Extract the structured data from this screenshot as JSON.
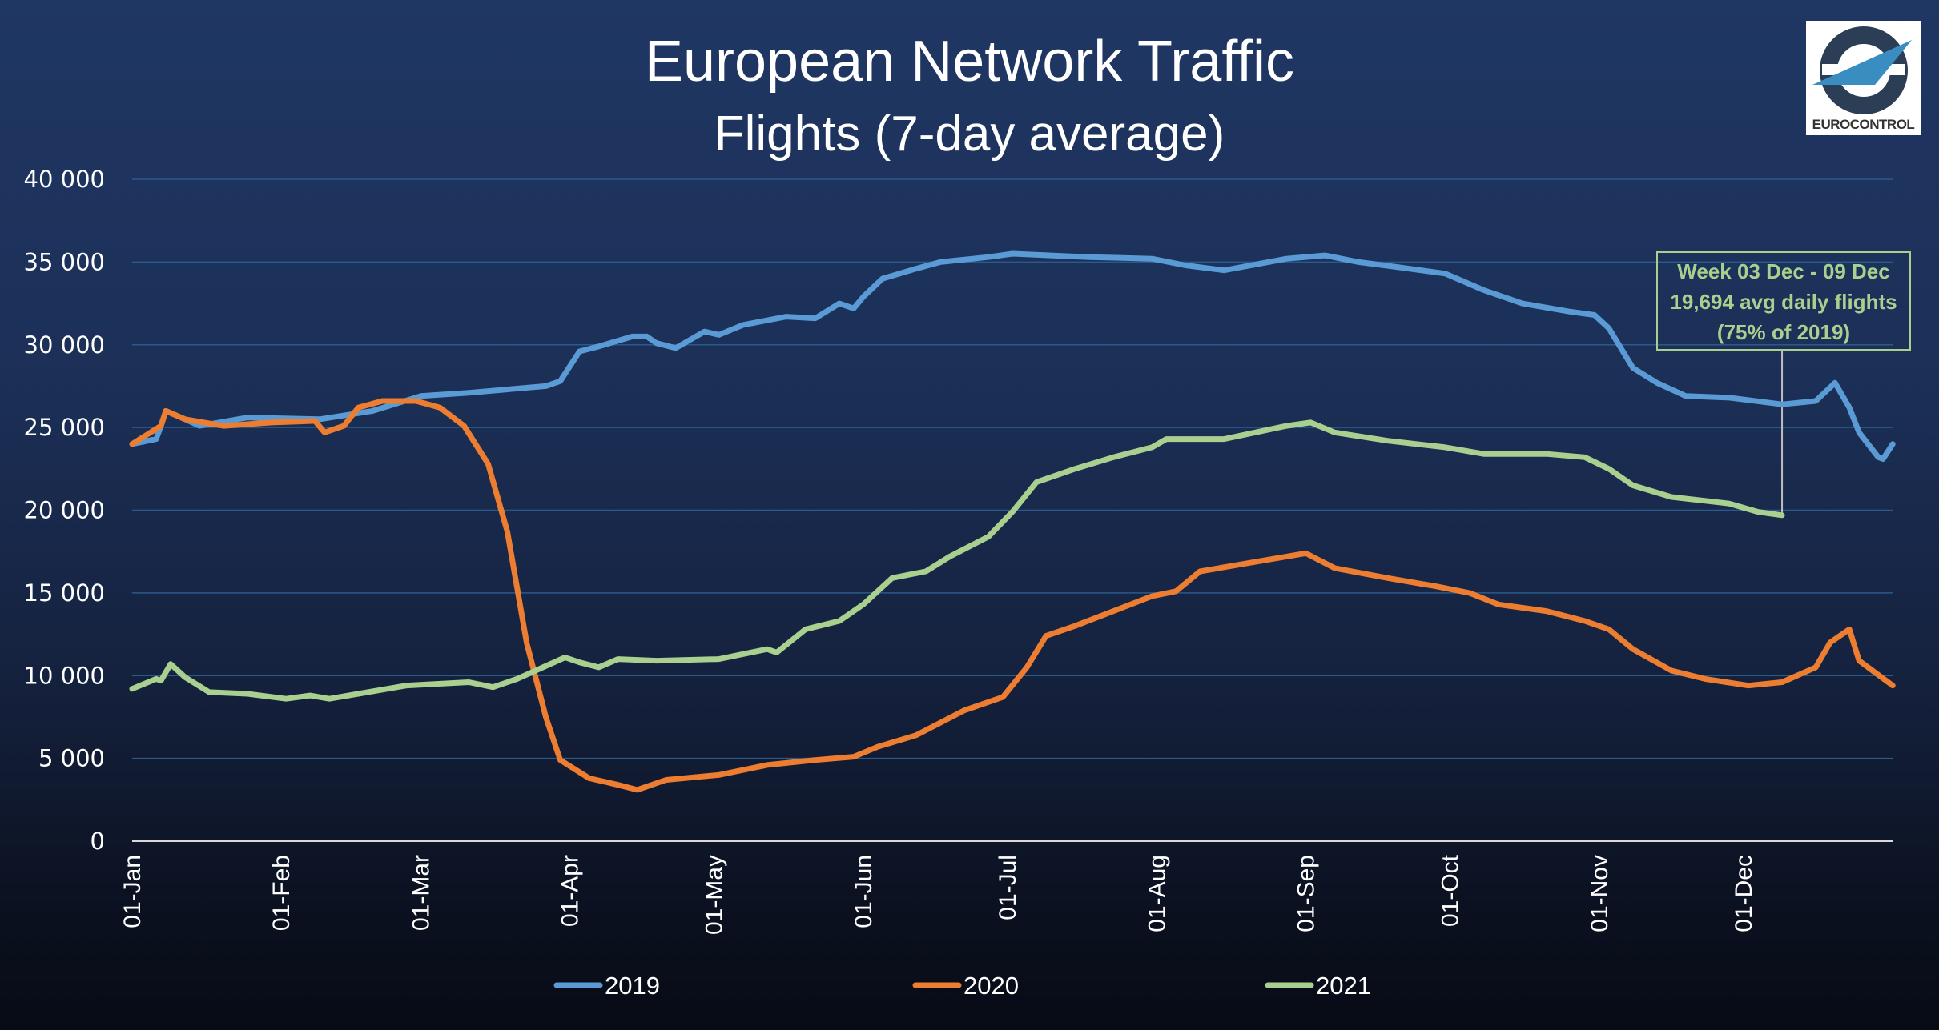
{
  "chart_data": {
    "type": "line",
    "title": "European Network Traffic",
    "subtitle": "Flights (7-day average)",
    "xlabel": "",
    "ylabel": "",
    "ylim": [
      0,
      40000
    ],
    "yticks": [
      "0",
      "5 000",
      "10 000",
      "15 000",
      "20 000",
      "25 000",
      "30 000",
      "35 000",
      "40 000"
    ],
    "ytick_values": [
      0,
      5000,
      10000,
      15000,
      20000,
      25000,
      30000,
      35000,
      40000
    ],
    "xtick_labels": [
      "01-Jan",
      "01-Feb",
      "01-Mar",
      "01-Apr",
      "01-May",
      "01-Jun",
      "01-Jul",
      "01-Aug",
      "01-Sep",
      "01-Oct",
      "01-Nov",
      "01-Dec"
    ],
    "xtick_days": [
      0,
      31,
      60,
      91,
      121,
      152,
      182,
      213,
      244,
      274,
      305,
      335
    ],
    "xlim_days": [
      0,
      366
    ],
    "grid": true,
    "legend_position": "bottom",
    "series": [
      {
        "name": "2019",
        "color": "#5b9bd5",
        "points": [
          [
            0,
            24000
          ],
          [
            5,
            24300
          ],
          [
            6,
            25100
          ],
          [
            7,
            26000
          ],
          [
            11,
            25500
          ],
          [
            14,
            25100
          ],
          [
            24,
            25600
          ],
          [
            39,
            25500
          ],
          [
            50,
            26000
          ],
          [
            60,
            26900
          ],
          [
            70,
            27100
          ],
          [
            86,
            27500
          ],
          [
            89,
            27800
          ],
          [
            93,
            29600
          ],
          [
            97,
            29900
          ],
          [
            104,
            30500
          ],
          [
            107,
            30500
          ],
          [
            109,
            30100
          ],
          [
            113,
            29800
          ],
          [
            119,
            30800
          ],
          [
            122,
            30600
          ],
          [
            127,
            31200
          ],
          [
            136,
            31700
          ],
          [
            142,
            31600
          ],
          [
            147,
            32500
          ],
          [
            150,
            32200
          ],
          [
            152,
            32900
          ],
          [
            156,
            34000
          ],
          [
            163,
            34600
          ],
          [
            168,
            35000
          ],
          [
            178,
            35300
          ],
          [
            183,
            35500
          ],
          [
            199,
            35300
          ],
          [
            212,
            35200
          ],
          [
            219,
            34800
          ],
          [
            227,
            34500
          ],
          [
            240,
            35200
          ],
          [
            248,
            35400
          ],
          [
            255,
            35000
          ],
          [
            263,
            34700
          ],
          [
            273,
            34300
          ],
          [
            281,
            33300
          ],
          [
            289,
            32500
          ],
          [
            299,
            32000
          ],
          [
            304,
            31800
          ],
          [
            307,
            31000
          ],
          [
            312,
            28600
          ],
          [
            317,
            27700
          ],
          [
            323,
            26900
          ],
          [
            332,
            26800
          ],
          [
            343,
            26400
          ],
          [
            350,
            26600
          ],
          [
            354,
            27700
          ],
          [
            357,
            26200
          ],
          [
            359,
            24700
          ],
          [
            363,
            23200
          ],
          [
            364,
            23100
          ],
          [
            366,
            24000
          ]
        ]
      },
      {
        "name": "2020",
        "color": "#ed7d31",
        "points": [
          [
            0,
            24000
          ],
          [
            6,
            25100
          ],
          [
            7,
            26000
          ],
          [
            11,
            25500
          ],
          [
            19,
            25100
          ],
          [
            29,
            25300
          ],
          [
            38,
            25400
          ],
          [
            40,
            24700
          ],
          [
            44,
            25100
          ],
          [
            47,
            26200
          ],
          [
            52,
            26600
          ],
          [
            59,
            26600
          ],
          [
            64,
            26200
          ],
          [
            69,
            25100
          ],
          [
            74,
            22800
          ],
          [
            78,
            18700
          ],
          [
            82,
            12000
          ],
          [
            86,
            7500
          ],
          [
            89,
            4900
          ],
          [
            95,
            3800
          ],
          [
            101,
            3400
          ],
          [
            105,
            3100
          ],
          [
            111,
            3700
          ],
          [
            122,
            4000
          ],
          [
            132,
            4600
          ],
          [
            142,
            4900
          ],
          [
            150,
            5100
          ],
          [
            155,
            5700
          ],
          [
            163,
            6400
          ],
          [
            173,
            7900
          ],
          [
            181,
            8700
          ],
          [
            186,
            10500
          ],
          [
            190,
            12400
          ],
          [
            196,
            13000
          ],
          [
            204,
            13900
          ],
          [
            212,
            14800
          ],
          [
            217,
            15100
          ],
          [
            222,
            16300
          ],
          [
            230,
            16700
          ],
          [
            240,
            17200
          ],
          [
            244,
            17400
          ],
          [
            250,
            16500
          ],
          [
            261,
            15900
          ],
          [
            271,
            15400
          ],
          [
            278,
            15000
          ],
          [
            284,
            14300
          ],
          [
            294,
            13900
          ],
          [
            302,
            13300
          ],
          [
            307,
            12800
          ],
          [
            312,
            11600
          ],
          [
            320,
            10300
          ],
          [
            327,
            9800
          ],
          [
            336,
            9400
          ],
          [
            343,
            9600
          ],
          [
            350,
            10500
          ],
          [
            353,
            12000
          ],
          [
            357,
            12800
          ],
          [
            359,
            10900
          ],
          [
            366,
            9400
          ]
        ]
      },
      {
        "name": "2021",
        "color": "#a9d08e",
        "points": [
          [
            0,
            9200
          ],
          [
            5,
            9800
          ],
          [
            6,
            9700
          ],
          [
            8,
            10700
          ],
          [
            11,
            9900
          ],
          [
            16,
            9000
          ],
          [
            24,
            8900
          ],
          [
            32,
            8600
          ],
          [
            37,
            8800
          ],
          [
            41,
            8600
          ],
          [
            47,
            8900
          ],
          [
            57,
            9400
          ],
          [
            70,
            9600
          ],
          [
            75,
            9300
          ],
          [
            80,
            9800
          ],
          [
            90,
            11100
          ],
          [
            93,
            10800
          ],
          [
            97,
            10500
          ],
          [
            101,
            11000
          ],
          [
            109,
            10900
          ],
          [
            122,
            11000
          ],
          [
            132,
            11600
          ],
          [
            134,
            11400
          ],
          [
            140,
            12800
          ],
          [
            147,
            13300
          ],
          [
            152,
            14300
          ],
          [
            158,
            15900
          ],
          [
            165,
            16300
          ],
          [
            170,
            17200
          ],
          [
            178,
            18400
          ],
          [
            183,
            19900
          ],
          [
            188,
            21700
          ],
          [
            196,
            22500
          ],
          [
            204,
            23200
          ],
          [
            212,
            23800
          ],
          [
            215,
            24300
          ],
          [
            227,
            24300
          ],
          [
            240,
            25100
          ],
          [
            245,
            25300
          ],
          [
            250,
            24700
          ],
          [
            261,
            24200
          ],
          [
            273,
            23800
          ],
          [
            281,
            23400
          ],
          [
            294,
            23400
          ],
          [
            302,
            23200
          ],
          [
            307,
            22500
          ],
          [
            312,
            21500
          ],
          [
            320,
            20800
          ],
          [
            332,
            20400
          ],
          [
            338,
            19900
          ],
          [
            343,
            19694
          ]
        ]
      }
    ],
    "annotation": {
      "lines": [
        "Week 03 Dec - 09 Dec",
        "19,694 avg daily flights",
        "(75% of 2019)"
      ],
      "day": 343,
      "value": 19694
    },
    "logo_text": "EUROCONTROL"
  }
}
